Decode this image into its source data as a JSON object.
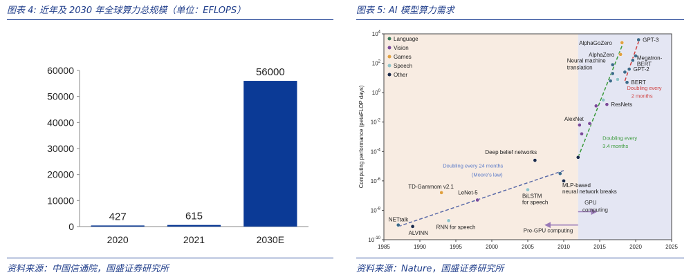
{
  "left": {
    "title": "图表 4:  近年及 2030 年全球算力总规模（单位：EFLOPS）",
    "source": "资料来源：中国信通院，国盛证券研究所",
    "chart_data": {
      "type": "bar",
      "categories": [
        "2020",
        "2021",
        "2030E"
      ],
      "values": [
        427,
        615,
        56000
      ],
      "data_labels": [
        "427",
        "615",
        "56000"
      ],
      "ylim": [
        0,
        60000
      ],
      "yticks": [
        0,
        10000,
        20000,
        30000,
        40000,
        50000,
        60000
      ],
      "grid": false,
      "bar_color": "#0b3a96"
    }
  },
  "right": {
    "title": "图表 5:  AI 模型算力需求",
    "source": "资料来源：Nature，国盛证券研究所",
    "chart_data": {
      "type": "scatter",
      "xlabel": "",
      "ylabel": "Computing performance (petaFLOP days)",
      "xlim": [
        1985,
        2025
      ],
      "xticks": [
        1985,
        1990,
        1995,
        2000,
        2005,
        2010,
        2015,
        2020,
        2025
      ],
      "ylim_log10": [
        -10,
        4
      ],
      "yticks_log10": [
        -10,
        -8,
        -6,
        -4,
        -2,
        0,
        2,
        4
      ],
      "legend": {
        "placement": "top-left",
        "entries": [
          {
            "name": "Language",
            "color": "#3b7a5a"
          },
          {
            "name": "Vision",
            "color": "#7a4a9a"
          },
          {
            "name": "Games",
            "color": "#e0a040"
          },
          {
            "name": "Speech",
            "color": "#8fc3c8"
          },
          {
            "name": "Other",
            "color": "#1a2a4a"
          }
        ]
      },
      "points": [
        {
          "label": "NETtalk",
          "x": 1987,
          "y": -9,
          "color": "#3b6a8a"
        },
        {
          "label": "ALVINN",
          "x": 1989,
          "y": -9.1,
          "color": "#1a2a4a"
        },
        {
          "label": "RNN for speech",
          "x": 1994,
          "y": -8.7,
          "color": "#8fc3c8"
        },
        {
          "label": "TD-Gammom v2.1",
          "x": 1993,
          "y": -6.8,
          "color": "#e0a040"
        },
        {
          "label": "LeNet-5",
          "x": 1998,
          "y": -7.3,
          "color": "#7a4a9a"
        },
        {
          "label": "BiLSTM for speech",
          "x": 2005,
          "y": -6.6,
          "color": "#8fc3c8"
        },
        {
          "label": "Deep belief networks",
          "x": 2006,
          "y": -4.6,
          "color": "#1a2a4a"
        },
        {
          "label": "",
          "x": 2009.5,
          "y": -5.5,
          "color": "#3b6a8a"
        },
        {
          "label": "MLP-based neural network breaks",
          "x": 2010,
          "y": -6,
          "color": "#1a2a4a"
        },
        {
          "label": "",
          "x": 2012,
          "y": -4.4,
          "color": "#1a2a4a"
        },
        {
          "label": "AlexNet",
          "x": 2012.2,
          "y": -2.2,
          "color": "#7a4a9a"
        },
        {
          "label": "",
          "x": 2012.5,
          "y": -2.8,
          "color": "#7a4a9a"
        },
        {
          "label": "",
          "x": 2013.6,
          "y": -2.1,
          "color": "#7a4a9a"
        },
        {
          "label": "",
          "x": 2014.5,
          "y": -0.9,
          "color": "#7a4a9a"
        },
        {
          "label": "",
          "x": 2015.5,
          "y": -0.5,
          "color": "#8fc3c8"
        },
        {
          "label": "ResNets",
          "x": 2016,
          "y": -0.8,
          "color": "#7a4a9a"
        },
        {
          "label": "",
          "x": 2016.5,
          "y": 0.8,
          "color": "#3b6a8a"
        },
        {
          "label": "",
          "x": 2016.8,
          "y": 1.3,
          "color": "#3b6a8a"
        },
        {
          "label": "Neural machine translation",
          "x": 2016.8,
          "y": 1.9,
          "color": "#3b6a8a"
        },
        {
          "label": "",
          "x": 2017.5,
          "y": 0.9,
          "color": "#8fc3c8"
        },
        {
          "label": "AlphaZero",
          "x": 2017.9,
          "y": 2.6,
          "color": "#e0a040"
        },
        {
          "label": "AlphaGoZero",
          "x": 2018.1,
          "y": 3.4,
          "color": "#e0a040"
        },
        {
          "label": "",
          "x": 2018.5,
          "y": 1.4,
          "color": "#3b6a8a"
        },
        {
          "label": "BERT",
          "x": 2018.8,
          "y": 0.7,
          "color": "#3b6a8a"
        },
        {
          "label": "GPT-2",
          "x": 2019.1,
          "y": 1.6,
          "color": "#3b6a8a"
        },
        {
          "label": "Megatron-BERT",
          "x": 2019.6,
          "y": 2.2,
          "color": "#3b6a8a"
        },
        {
          "label": "",
          "x": 2020,
          "y": 2.5,
          "color": "#3b6a8a"
        },
        {
          "label": "GPT-3",
          "x": 2020.4,
          "y": 3.6,
          "color": "#3b6a8a"
        }
      ],
      "annotations": [
        {
          "text": "Doubling every 24 months",
          "color": "#5a7ac8"
        },
        {
          "text": "(Moore's law)",
          "color": "#5a7ac8"
        },
        {
          "text": "Doubling every",
          "color": "#3a9a3a"
        },
        {
          "text": "3.4 months",
          "color": "#3a9a3a"
        },
        {
          "text": "Doubling every",
          "color": "#d04040"
        },
        {
          "text": "2 months",
          "color": "#d04040"
        },
        {
          "text": "GPU",
          "color": "#333333"
        },
        {
          "text": "computing",
          "color": "#333333"
        },
        {
          "text": "Pre-GPU computing",
          "color": "#333333"
        }
      ]
    }
  }
}
